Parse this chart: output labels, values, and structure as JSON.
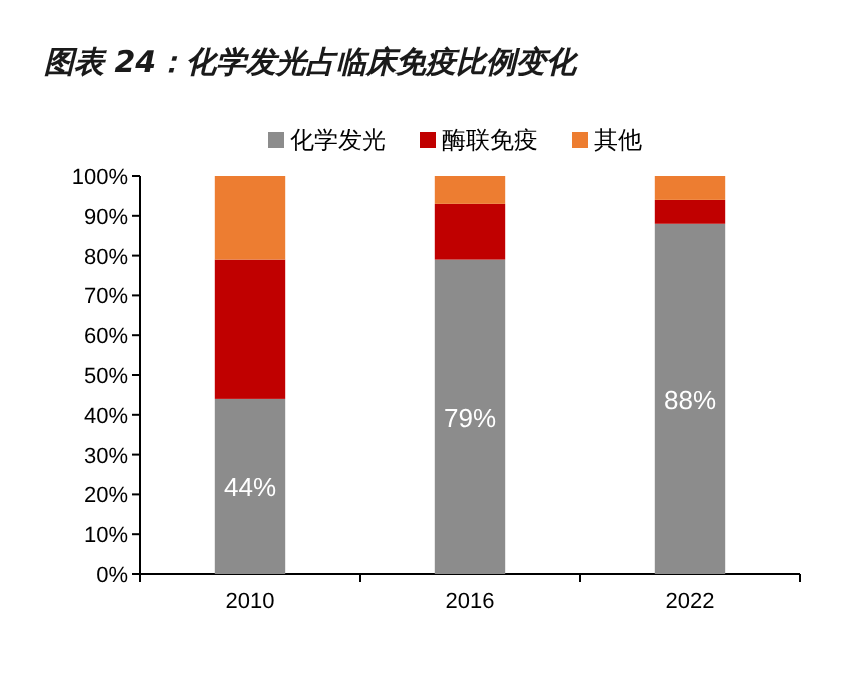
{
  "chart_data": {
    "type": "bar",
    "title": "图表 24：化学发光占临床免疫比例变化",
    "stacked": true,
    "legend": "top",
    "categories": [
      "2010",
      "2016",
      "2022"
    ],
    "ylim": [
      0,
      100
    ],
    "yticks": [
      {
        "value": 0,
        "label": "0%"
      },
      {
        "value": 10,
        "label": "10%"
      },
      {
        "value": 20,
        "label": "20%"
      },
      {
        "value": 30,
        "label": "30%"
      },
      {
        "value": 40,
        "label": "40%"
      },
      {
        "value": 50,
        "label": "50%"
      },
      {
        "value": 60,
        "label": "60%"
      },
      {
        "value": 70,
        "label": "70%"
      },
      {
        "value": 80,
        "label": "80%"
      },
      {
        "value": 90,
        "label": "90%"
      },
      {
        "value": 100,
        "label": "100%"
      }
    ],
    "series": [
      {
        "name": "化学发光",
        "color": "#8c8c8c",
        "values": [
          44,
          79,
          88
        ],
        "value_labels": [
          "44%",
          "79%",
          "88%"
        ]
      },
      {
        "name": "酶联免疫",
        "color": "#c00000",
        "values": [
          35,
          14,
          6
        ]
      },
      {
        "name": "其他",
        "color": "#ed7d31",
        "values": [
          21,
          7,
          6
        ]
      }
    ]
  }
}
